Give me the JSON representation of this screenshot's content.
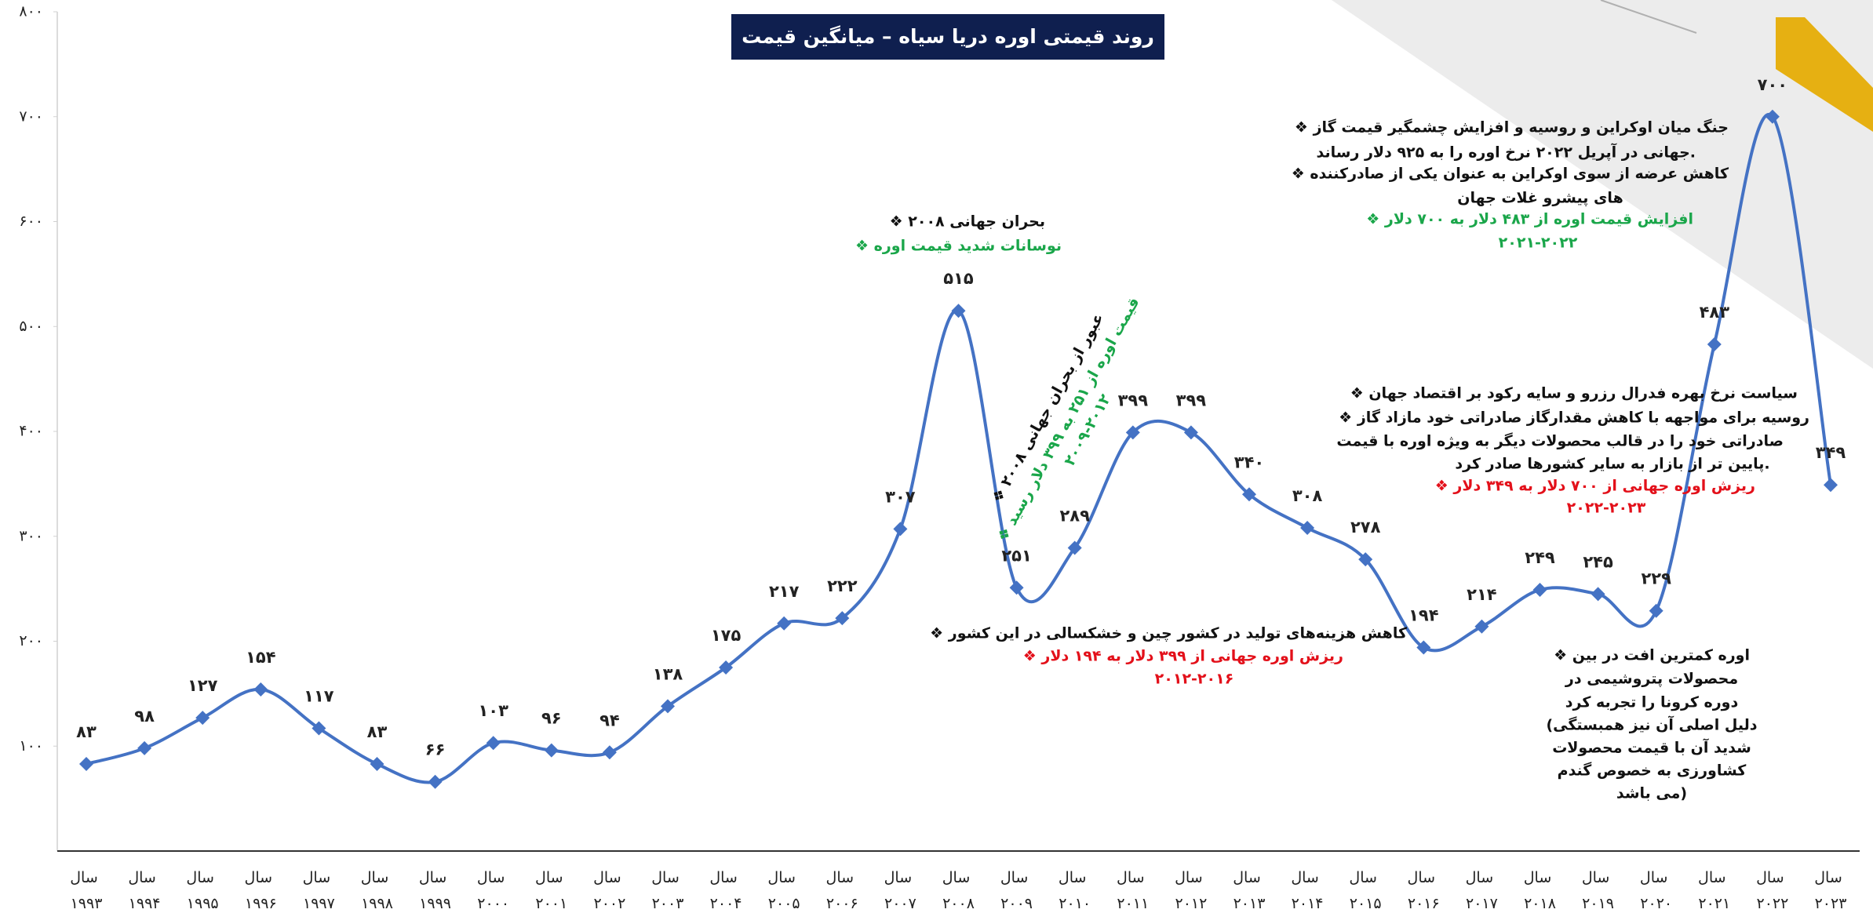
{
  "chart_data": {
    "type": "line",
    "title": "روند قیمتی اوره دریا سیاه – میانگین قیمت",
    "categories": [
      "سال ۱۹۹۳",
      "سال ۱۹۹۴",
      "سال ۱۹۹۵",
      "سال ۱۹۹۶",
      "سال ۱۹۹۷",
      "سال ۱۹۹۸",
      "سال ۱۹۹۹",
      "سال ۲۰۰۰",
      "سال ۲۰۰۱",
      "سال ۲۰۰۲",
      "سال ۲۰۰۳",
      "سال ۲۰۰۴",
      "سال ۲۰۰۵",
      "سال ۲۰۰۶",
      "سال ۲۰۰۷",
      "سال ۲۰۰۸",
      "سال ۲۰۰۹",
      "سال ۲۰۱۰",
      "سال ۲۰۱۱",
      "سال ۲۰۱۲",
      "سال ۲۰۱۳",
      "سال ۲۰۱۴",
      "سال ۲۰۱۵",
      "سال ۲۰۱۶",
      "سال ۲۰۱۷",
      "سال ۲۰۱۸",
      "سال ۲۰۱۹",
      "سال ۲۰۲۰",
      "سال ۲۰۲۱",
      "سال ۲۰۲۲",
      "سال ۲۰۲۳"
    ],
    "values": [
      83,
      98,
      127,
      154,
      117,
      83,
      66,
      103,
      96,
      94,
      138,
      175,
      217,
      222,
      307,
      515,
      251,
      289,
      399,
      399,
      340,
      308,
      278,
      194,
      214,
      249,
      245,
      229,
      483,
      700,
      349
    ],
    "value_labels": [
      "۸۳",
      "۹۸",
      "۱۲۷",
      "۱۵۴",
      "۱۱۷",
      "۸۳",
      "۶۶",
      "۱۰۳",
      "۹۶",
      "۹۴",
      "۱۳۸",
      "۱۷۵",
      "۲۱۷",
      "۲۲۲",
      "۳۰۷",
      "۵۱۵",
      "۲۵۱",
      "۲۸۹",
      "۳۹۹",
      "۳۹۹",
      "۳۴۰",
      "۳۰۸",
      "۲۷۸",
      "۱۹۴",
      "۲۱۴",
      "۲۴۹",
      "۲۴۵",
      "۲۲۹",
      "۴۸۳",
      "۷۰۰",
      "۳۴۹"
    ],
    "color": "#4472c4",
    "ylim": [
      0,
      800
    ],
    "yticks": [
      {
        "value": 100,
        "label": "۱۰۰"
      },
      {
        "value": 200,
        "label": "۲۰۰"
      },
      {
        "value": 300,
        "label": "۳۰۰"
      },
      {
        "value": 400,
        "label": "۴۰۰"
      },
      {
        "value": 500,
        "label": "۵۰۰"
      },
      {
        "value": 600,
        "label": "۶۰۰"
      },
      {
        "value": 700,
        "label": "۷۰۰"
      },
      {
        "value": 800,
        "label": "۸۰۰"
      }
    ],
    "grid": false,
    "annotations": [
      {
        "lines": [
          {
            "text": "❖ بحران جهانی ۲۰۰۸",
            "color": "#111111"
          },
          {
            "text": "❖ نوسانات شدید قیمت اوره",
            "color": "#1aa64a"
          }
        ]
      },
      {
        "lines": [
          {
            "text": "❖ عبور از بحران جهانی ۲۰۰۸",
            "color": "#111111"
          },
          {
            "text": "❖ قیمت اوره از ۲۵۱ به ۳۹۹ دلار رسید",
            "color": "#1aa64a"
          },
          {
            "text": "۲۰۰۹-۲۰۱۲",
            "color": "#1aa64a"
          }
        ]
      },
      {
        "lines": [
          {
            "text": "❖ کاهش هزینه‌های تولید در کشور چین و خشکسالی در این کشور",
            "color": "#111111"
          },
          {
            "text": "❖ ریزش اوره جهانی از ۳۹۹ دلار به ۱۹۴ دلار",
            "color": "#e3101a"
          },
          {
            "text": "۲۰۱۲-۲۰۱۶",
            "color": "#e3101a"
          }
        ]
      },
      {
        "lines": [
          {
            "text": "❖ اوره کمترین افت در بین",
            "color": "#111111"
          },
          {
            "text": "محصولات پتروشیمی در",
            "color": "#111111"
          },
          {
            "text": "دوره کرونا را تجربه کرد",
            "color": "#111111"
          },
          {
            "text": "(دلیل اصلی آن نیز همبستگی",
            "color": "#111111"
          },
          {
            "text": "شدید آن با قیمت محصولات",
            "color": "#111111"
          },
          {
            "text": "کشاورزی به خصوص گندم",
            "color": "#111111"
          },
          {
            "text": "می باشد)",
            "color": "#111111"
          }
        ]
      },
      {
        "lines": [
          {
            "text": "❖ جنگ میان اوکراین و روسیه و افزایش چشمگیر قیمت گاز",
            "color": "#111111"
          },
          {
            "text": "جهانی در آپریل ۲۰۲۲ نرخ اوره را به ۹۲۵ دلار رساند.",
            "color": "#111111"
          },
          {
            "text": "❖ کاهش عرضه از سوی اوکراین به عنوان یکی از صادرکننده",
            "color": "#111111"
          },
          {
            "text": "های پیشرو غلات جهان",
            "color": "#111111"
          },
          {
            "text": "❖ افزایش قیمت اوره از ۴۸۳ دلار به ۷۰۰ دلار",
            "color": "#1aa64a"
          },
          {
            "text": "۲۰۲۱-۲۰۲۲",
            "color": "#1aa64a"
          }
        ]
      },
      {
        "lines": [
          {
            "text": "❖ سیاست نرخ بهره فدرال رزرو و سایه رکود بر اقتصاد جهان",
            "color": "#111111"
          },
          {
            "text": "❖ روسیه برای مواجهه با کاهش مقدارگاز صادراتی خود مازاد گاز",
            "color": "#111111"
          },
          {
            "text": "صادراتی خود را در قالب محصولات دیگر به ویژه اوره با قیمت",
            "color": "#111111"
          },
          {
            "text": "پایین تر از بازار به سایر کشورها صادر کرد.",
            "color": "#111111"
          },
          {
            "text": "❖ ریزش اوره جهانی از ۷۰۰ دلار به ۳۴۹ دلار",
            "color": "#e3101a"
          },
          {
            "text": "۲۰۲۲-۲۰۲۳",
            "color": "#e3101a"
          }
        ]
      }
    ]
  }
}
